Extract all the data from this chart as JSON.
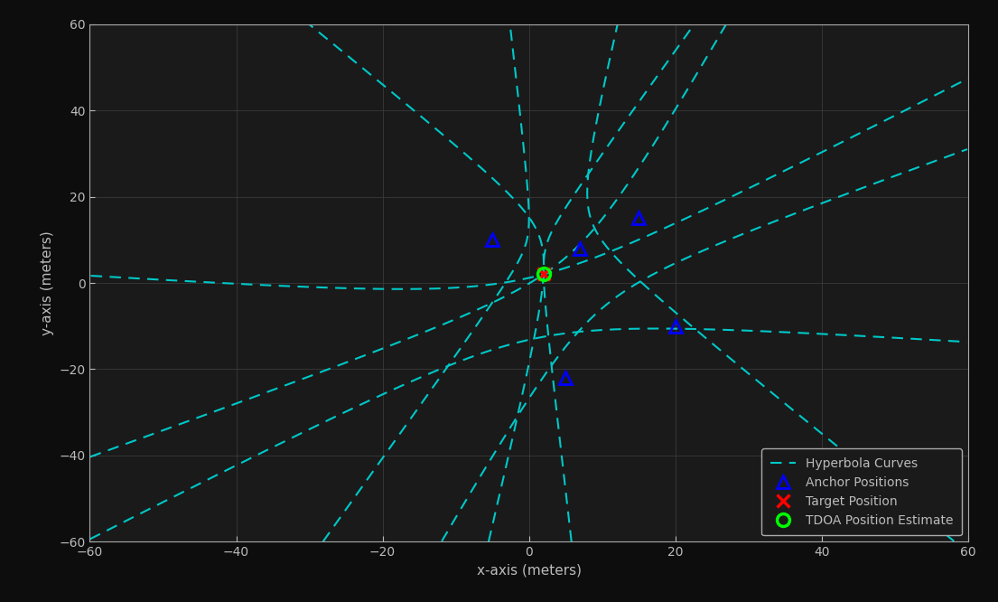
{
  "anchors": [
    [
      -5,
      10
    ],
    [
      7,
      8
    ],
    [
      15,
      15
    ],
    [
      20,
      -10
    ],
    [
      5,
      -22
    ]
  ],
  "target": [
    2,
    2
  ],
  "tdoa_estimate": [
    2,
    2
  ],
  "xlim": [
    -60,
    60
  ],
  "ylim": [
    -60,
    60
  ],
  "xlabel": "x-axis (meters)",
  "ylabel": "y-axis (meters)",
  "hyperbola_color": "#00C8C8",
  "anchor_color": "#0000FF",
  "target_color": "#FF0000",
  "tdoa_color": "#00FF00",
  "background_color": "#0D0D0D",
  "axes_color": "#1A1A1A",
  "grid_color": "#3A3A3A",
  "spine_color": "#AAAAAA",
  "text_color": "#BBBBBB",
  "xticks": [
    -60,
    -40,
    -20,
    0,
    20,
    40,
    60
  ],
  "yticks": [
    -60,
    -40,
    -20,
    0,
    20,
    40,
    60
  ],
  "figsize": [
    11.05,
    6.66
  ],
  "dpi": 100
}
